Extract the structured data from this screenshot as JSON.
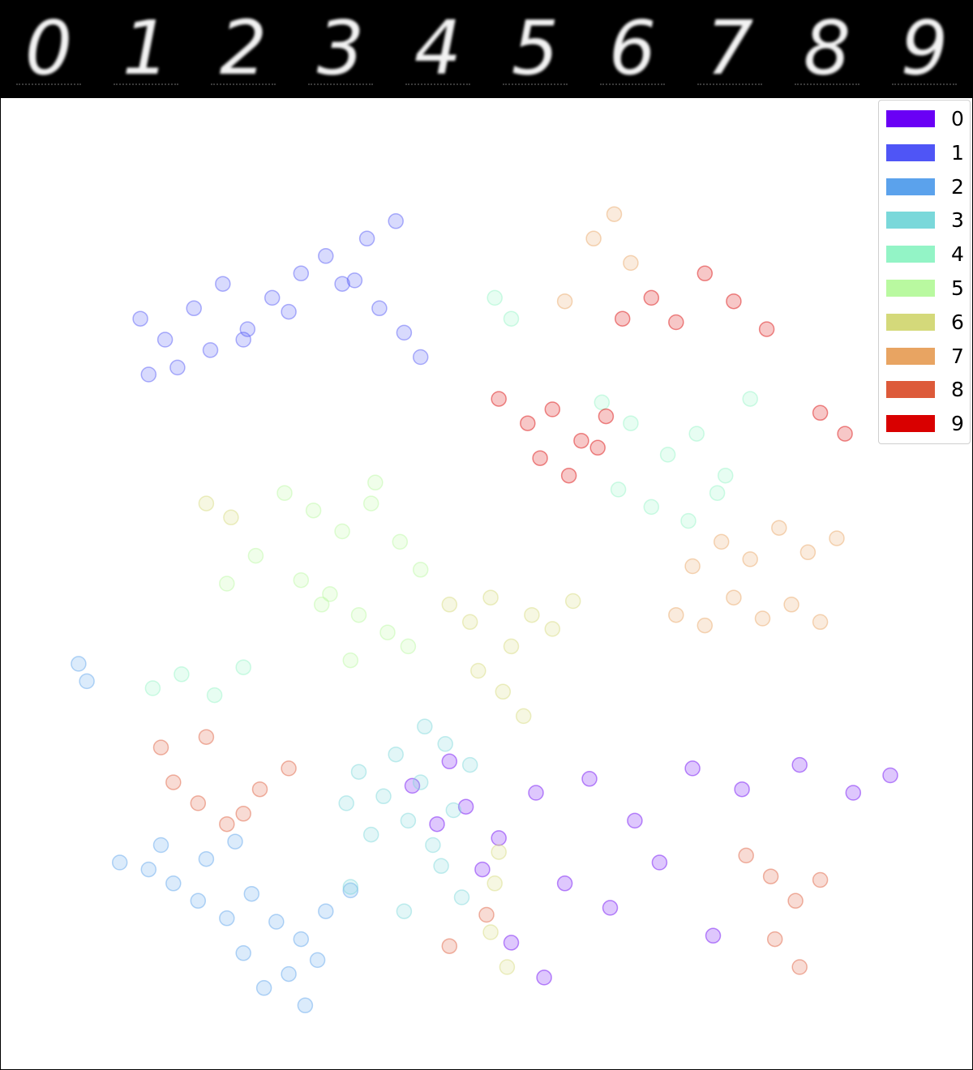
{
  "digit_strip": {
    "digits": [
      "0",
      "1",
      "2",
      "3",
      "4",
      "5",
      "6",
      "7",
      "8",
      "9"
    ]
  },
  "chart_data": {
    "type": "scatter",
    "title": "",
    "xlabel": "",
    "ylabel": "",
    "grid": false,
    "axes_visible": false,
    "legend": {
      "placement": "top-right"
    },
    "marker": "open circle, semi-transparent",
    "series": [
      {
        "name": "0",
        "color": "#6a00f5",
        "x": [
          -1.8,
          -0.9,
          -0.5,
          0.3,
          1.2,
          2.5,
          3.6,
          5.0,
          6.2,
          7.6,
          8.9,
          9.8,
          -1.2,
          -0.1,
          1.9,
          3.0,
          4.2,
          5.5,
          0.6,
          1.4
        ],
        "y": [
          -5.8,
          -5.1,
          -6.4,
          -7.3,
          -6.0,
          -5.6,
          -6.8,
          -5.3,
          -5.9,
          -5.2,
          -6.0,
          -5.5,
          -6.9,
          -8.2,
          -8.6,
          -9.3,
          -8.0,
          -10.1,
          -10.3,
          -11.3
        ]
      },
      {
        "name": "1",
        "color": "#4f55f6",
        "x": [
          -8.4,
          -7.8,
          -7.1,
          -6.4,
          -5.8,
          -5.2,
          -4.5,
          -3.9,
          -3.2,
          -2.6,
          -2.0,
          -1.6,
          -7.5,
          -6.7,
          -5.9,
          -4.8,
          -3.5,
          -2.9,
          -2.2,
          -8.2
        ],
        "y": [
          7.6,
          7.0,
          7.9,
          8.6,
          7.3,
          8.2,
          8.9,
          9.4,
          8.7,
          7.9,
          7.2,
          6.5,
          6.2,
          6.7,
          7.0,
          7.8,
          8.6,
          9.9,
          10.4,
          6.0
        ]
      },
      {
        "name": "2",
        "color": "#5ba2ec",
        "x": [
          -8.2,
          -7.6,
          -7.0,
          -6.3,
          -5.7,
          -5.1,
          -4.5,
          -3.9,
          -3.3,
          -8.9,
          -7.9,
          -6.8,
          -5.9,
          -4.8,
          -4.1,
          -9.9,
          -9.7,
          -6.1,
          -5.4,
          -4.4
        ],
        "y": [
          -8.2,
          -8.6,
          -9.1,
          -9.6,
          -8.9,
          -9.7,
          -10.2,
          -9.4,
          -8.8,
          -8.0,
          -7.5,
          -7.9,
          -10.6,
          -11.2,
          -10.8,
          -2.3,
          -2.8,
          -7.4,
          -11.6,
          -12.1
        ]
      },
      {
        "name": "3",
        "color": "#7ad8da",
        "x": [
          -3.1,
          -2.5,
          -1.9,
          -1.3,
          -0.8,
          -2.2,
          -1.6,
          -1.0,
          -2.8,
          -3.4,
          -1.1,
          -0.6,
          -2.0,
          -3.3,
          -0.4,
          -1.5
        ],
        "y": [
          -5.4,
          -6.1,
          -6.8,
          -7.5,
          -6.5,
          -4.9,
          -5.7,
          -4.6,
          -7.2,
          -6.3,
          -8.1,
          -9.0,
          -9.4,
          -8.7,
          -5.2,
          -4.1
        ]
      },
      {
        "name": "4",
        "color": "#93f4c6",
        "x": [
          2.8,
          3.5,
          4.4,
          5.1,
          5.8,
          4.0,
          4.9,
          5.6,
          -8.1,
          -7.4,
          -6.6,
          -5.9,
          0.2,
          0.6,
          6.4,
          3.2
        ],
        "y": [
          5.2,
          4.6,
          3.7,
          4.3,
          3.1,
          2.2,
          1.8,
          2.6,
          -3.0,
          -2.6,
          -3.2,
          -2.4,
          8.2,
          7.6,
          5.3,
          2.7
        ]
      },
      {
        "name": "5",
        "color": "#b9f9a0",
        "x": [
          -4.9,
          -4.2,
          -3.5,
          -2.8,
          -2.1,
          -1.6,
          -4.5,
          -3.8,
          -3.1,
          -2.4,
          -5.6,
          -6.3,
          -1.9,
          -3.3,
          -4.0,
          -2.7
        ],
        "y": [
          2.6,
          2.1,
          1.5,
          2.3,
          1.2,
          0.4,
          0.1,
          -0.3,
          -0.9,
          -1.4,
          0.8,
          0.0,
          -1.8,
          -2.2,
          -0.6,
          2.9
        ]
      },
      {
        "name": "6",
        "color": "#d4d97a",
        "x": [
          -0.9,
          -0.4,
          0.1,
          0.6,
          1.1,
          1.6,
          2.1,
          -0.2,
          0.4,
          0.9,
          0.3,
          0.2,
          0.1,
          -6.8,
          -6.2,
          0.5
        ],
        "y": [
          -0.6,
          -1.1,
          -0.4,
          -1.8,
          -0.9,
          -1.3,
          -0.5,
          -2.5,
          -3.1,
          -3.8,
          -7.7,
          -8.6,
          -10.0,
          2.3,
          1.9,
          -11.0
        ]
      },
      {
        "name": "7",
        "color": "#e8a462",
        "x": [
          4.6,
          5.3,
          6.0,
          6.7,
          7.4,
          8.1,
          5.0,
          5.7,
          6.4,
          7.1,
          7.8,
          8.5,
          2.6,
          3.1,
          3.5,
          1.9
        ],
        "y": [
          -0.9,
          -1.2,
          -0.4,
          -1.0,
          -0.6,
          -1.1,
          0.5,
          1.2,
          0.7,
          1.6,
          0.9,
          1.3,
          9.9,
          10.6,
          9.2,
          8.1
        ]
      },
      {
        "name": "8",
        "color": "#dd5a3a",
        "x": [
          -7.6,
          -7.0,
          -6.3,
          -5.5,
          -4.8,
          -7.9,
          -6.8,
          -5.9,
          6.3,
          6.9,
          7.5,
          8.1,
          7.0,
          7.6,
          0.0,
          -0.9
        ],
        "y": [
          -5.7,
          -6.3,
          -6.9,
          -5.9,
          -5.3,
          -4.7,
          -4.4,
          -6.6,
          -7.8,
          -8.4,
          -9.1,
          -8.5,
          -10.2,
          -11.0,
          -9.5,
          -10.4
        ]
      },
      {
        "name": "9",
        "color": "#d90000",
        "x": [
          0.3,
          1.0,
          1.6,
          2.3,
          2.9,
          1.3,
          2.0,
          2.7,
          3.3,
          4.0,
          4.6,
          5.3,
          6.0,
          6.8,
          8.1,
          8.7
        ],
        "y": [
          5.3,
          4.6,
          5.0,
          4.1,
          4.8,
          3.6,
          3.1,
          3.9,
          7.6,
          8.2,
          7.5,
          8.9,
          8.1,
          7.3,
          4.9,
          4.3
        ]
      }
    ],
    "xlim": [
      -11,
      11
    ],
    "ylim": [
      -13,
      13
    ]
  }
}
